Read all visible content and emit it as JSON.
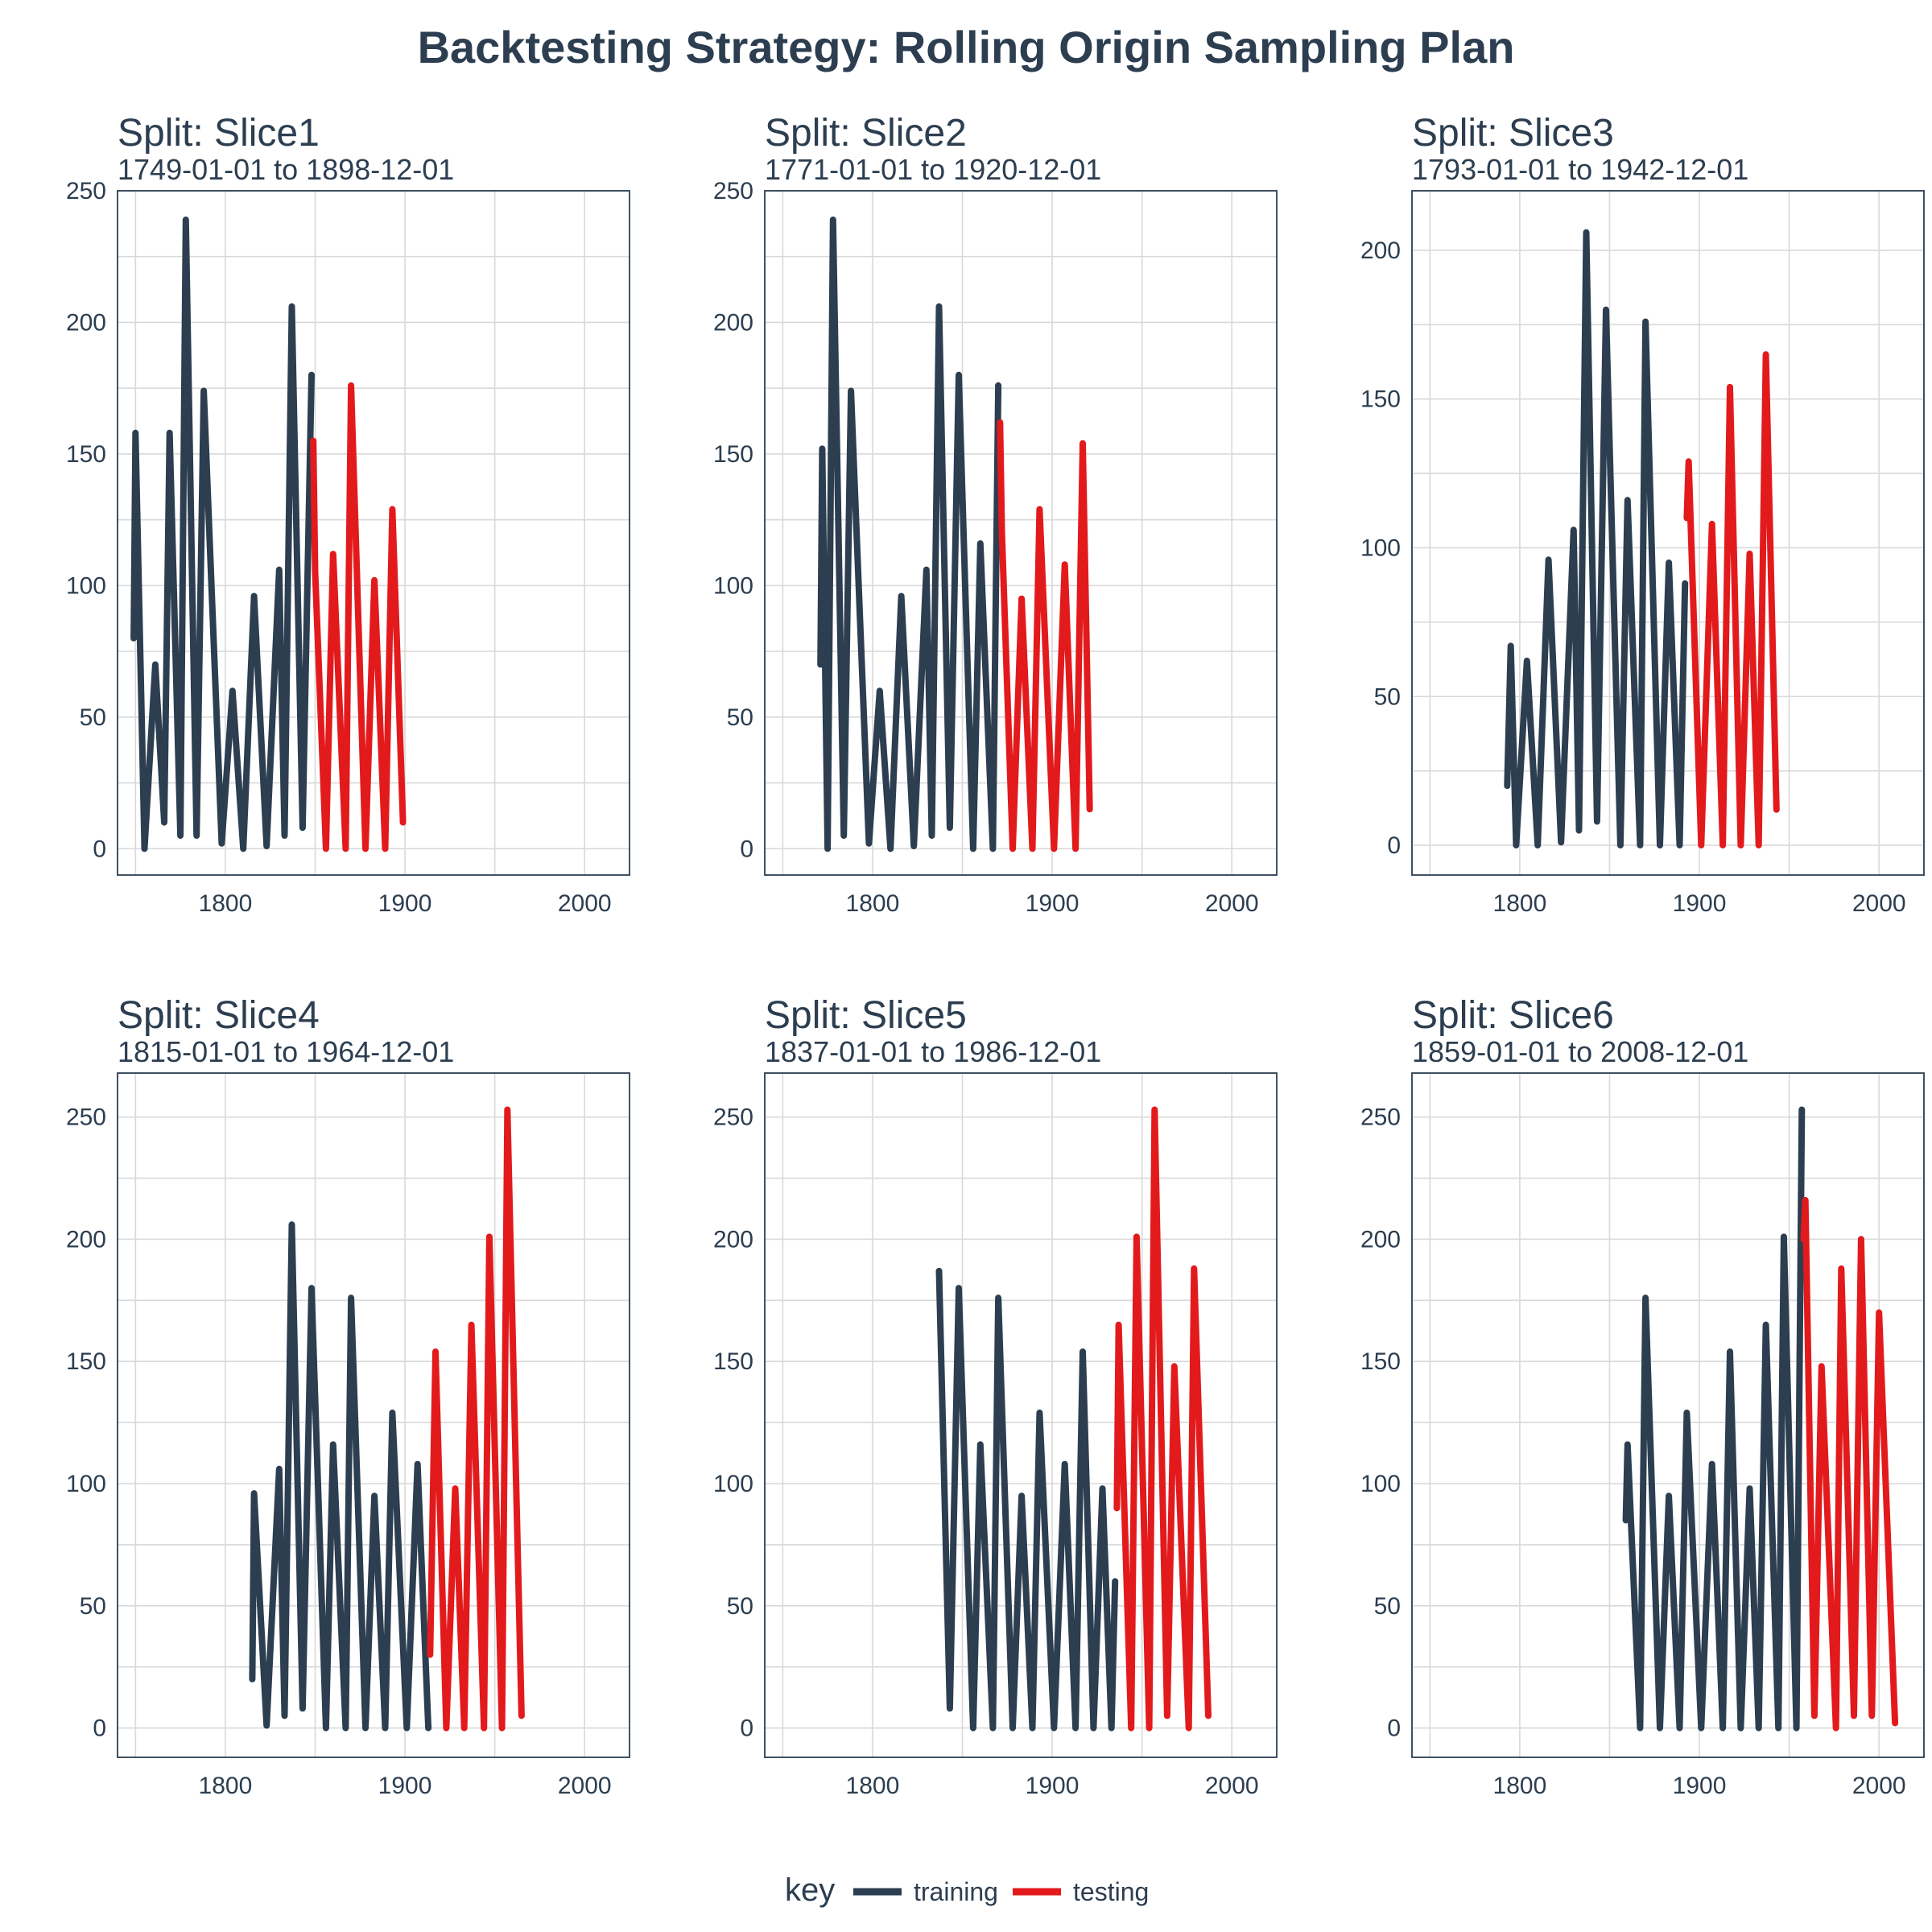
{
  "title": "Backtesting Strategy: Rolling Origin Sampling Plan",
  "legend": {
    "title": "key",
    "items": [
      {
        "label": "training",
        "color": "#2c3e50"
      },
      {
        "label": "testing",
        "color": "#e31a1c"
      }
    ]
  },
  "chart_data": [
    {
      "type": "line",
      "title": "Split: Slice1",
      "subtitle": "1749-01-01 to 1898-12-01",
      "xlim": [
        1740,
        2025
      ],
      "x_ticks": [
        1800,
        1900,
        2000
      ],
      "ylim": [
        -10,
        250
      ],
      "y_ticks": [
        0,
        50,
        100,
        150,
        200,
        250
      ],
      "series": [
        {
          "name": "training",
          "color": "#2c3e50",
          "x": [
            1749,
            1750,
            1755,
            1761,
            1766,
            1769,
            1775,
            1778,
            1784,
            1788,
            1798,
            1804,
            1810,
            1816,
            1823,
            1830,
            1833,
            1837,
            1843,
            1848
          ],
          "y": [
            80,
            158,
            0,
            70,
            10,
            158,
            5,
            239,
            5,
            174,
            2,
            60,
            0,
            96,
            1,
            106,
            5,
            206,
            8,
            180
          ]
        },
        {
          "name": "testing",
          "color": "#e31a1c",
          "x": [
            1849,
            1850,
            1856,
            1860,
            1867,
            1870,
            1878,
            1883,
            1889,
            1893,
            1898.9
          ],
          "y": [
            155,
            105,
            0,
            112,
            0,
            176,
            0,
            102,
            0,
            129,
            10
          ]
        }
      ]
    },
    {
      "type": "line",
      "title": "Split: Slice2",
      "subtitle": "1771-01-01 to 1920-12-01",
      "xlim": [
        1740,
        2025
      ],
      "x_ticks": [
        1800,
        1900,
        2000
      ],
      "ylim": [
        -10,
        250
      ],
      "y_ticks": [
        0,
        50,
        100,
        150,
        200,
        250
      ],
      "series": [
        {
          "name": "training",
          "color": "#2c3e50",
          "x": [
            1771,
            1772,
            1775,
            1778,
            1784,
            1788,
            1798,
            1804,
            1810,
            1816,
            1823,
            1830,
            1833,
            1837,
            1843,
            1848,
            1856,
            1860,
            1867,
            1870
          ],
          "y": [
            70,
            152,
            0,
            239,
            5,
            174,
            2,
            60,
            0,
            96,
            1,
            106,
            5,
            206,
            8,
            180,
            0,
            116,
            0,
            176
          ]
        },
        {
          "name": "testing",
          "color": "#e31a1c",
          "x": [
            1871,
            1872,
            1878,
            1883,
            1889,
            1893,
            1901,
            1907,
            1913,
            1917,
            1920.9
          ],
          "y": [
            162,
            120,
            0,
            95,
            0,
            129,
            0,
            108,
            0,
            154,
            15
          ]
        }
      ]
    },
    {
      "type": "line",
      "title": "Split: Slice3",
      "subtitle": "1793-01-01 to 1942-12-01",
      "xlim": [
        1740,
        2025
      ],
      "x_ticks": [
        1800,
        1900,
        2000
      ],
      "ylim": [
        -10,
        220
      ],
      "y_ticks": [
        0,
        50,
        100,
        150,
        200
      ],
      "series": [
        {
          "name": "training",
          "color": "#2c3e50",
          "x": [
            1793,
            1795,
            1798,
            1804,
            1810,
            1816,
            1823,
            1830,
            1833,
            1837,
            1843,
            1848,
            1856,
            1860,
            1867,
            1870,
            1878,
            1883,
            1889,
            1892
          ],
          "y": [
            20,
            67,
            0,
            62,
            0,
            96,
            1,
            106,
            5,
            206,
            8,
            180,
            0,
            116,
            0,
            176,
            0,
            95,
            0,
            88
          ]
        },
        {
          "name": "testing",
          "color": "#e31a1c",
          "x": [
            1893,
            1894,
            1901,
            1907,
            1913,
            1917,
            1923,
            1928,
            1933,
            1937,
            1942.9
          ],
          "y": [
            110,
            129,
            0,
            108,
            0,
            154,
            0,
            98,
            0,
            165,
            12
          ]
        }
      ]
    },
    {
      "type": "line",
      "title": "Split: Slice4",
      "subtitle": "1815-01-01 to 1964-12-01",
      "xlim": [
        1740,
        2025
      ],
      "x_ticks": [
        1800,
        1900,
        2000
      ],
      "ylim": [
        -12,
        268
      ],
      "y_ticks": [
        0,
        50,
        100,
        150,
        200,
        250
      ],
      "series": [
        {
          "name": "training",
          "color": "#2c3e50",
          "x": [
            1815,
            1816,
            1823,
            1830,
            1833,
            1837,
            1843,
            1848,
            1856,
            1860,
            1867,
            1870,
            1878,
            1883,
            1889,
            1893,
            1901,
            1907,
            1913
          ],
          "y": [
            20,
            96,
            1,
            106,
            5,
            206,
            8,
            180,
            0,
            116,
            0,
            176,
            0,
            95,
            0,
            129,
            0,
            108,
            0
          ]
        },
        {
          "name": "testing",
          "color": "#e31a1c",
          "x": [
            1914,
            1917,
            1923,
            1928,
            1933,
            1937,
            1944,
            1947,
            1954,
            1957,
            1964.9
          ],
          "y": [
            30,
            154,
            0,
            98,
            0,
            165,
            0,
            201,
            0,
            253,
            5
          ]
        }
      ]
    },
    {
      "type": "line",
      "title": "Split: Slice5",
      "subtitle": "1837-01-01 to 1986-12-01",
      "xlim": [
        1740,
        2025
      ],
      "x_ticks": [
        1800,
        1900,
        2000
      ],
      "ylim": [
        -12,
        268
      ],
      "y_ticks": [
        0,
        50,
        100,
        150,
        200,
        250
      ],
      "series": [
        {
          "name": "training",
          "color": "#2c3e50",
          "x": [
            1837,
            1843,
            1848,
            1856,
            1860,
            1867,
            1870,
            1878,
            1883,
            1889,
            1893,
            1901,
            1907,
            1913,
            1917,
            1923,
            1928,
            1933,
            1935
          ],
          "y": [
            187,
            8,
            180,
            0,
            116,
            0,
            176,
            0,
            95,
            0,
            129,
            0,
            108,
            0,
            154,
            0,
            98,
            0,
            60
          ]
        },
        {
          "name": "testing",
          "color": "#e31a1c",
          "x": [
            1936,
            1937,
            1944,
            1947,
            1954,
            1957,
            1964,
            1968,
            1976,
            1979,
            1986.9
          ],
          "y": [
            90,
            165,
            0,
            201,
            0,
            253,
            5,
            148,
            0,
            188,
            5
          ]
        }
      ]
    },
    {
      "type": "line",
      "title": "Split: Slice6",
      "subtitle": "1859-01-01 to 2008-12-01",
      "xlim": [
        1740,
        2025
      ],
      "x_ticks": [
        1800,
        1900,
        2000
      ],
      "ylim": [
        -12,
        268
      ],
      "y_ticks": [
        0,
        50,
        100,
        150,
        200,
        250
      ],
      "series": [
        {
          "name": "training",
          "color": "#2c3e50",
          "x": [
            1859,
            1860,
            1867,
            1870,
            1878,
            1883,
            1889,
            1893,
            1901,
            1907,
            1913,
            1917,
            1923,
            1928,
            1933,
            1937,
            1944,
            1947,
            1954,
            1957
          ],
          "y": [
            85,
            116,
            0,
            176,
            0,
            95,
            0,
            129,
            0,
            108,
            0,
            154,
            0,
            98,
            0,
            165,
            0,
            201,
            0,
            253
          ]
        },
        {
          "name": "testing",
          "color": "#e31a1c",
          "x": [
            1958,
            1959,
            1964,
            1968,
            1976,
            1979,
            1986,
            1990,
            1996,
            2000,
            2008.9
          ],
          "y": [
            200,
            216,
            5,
            148,
            0,
            188,
            5,
            200,
            5,
            170,
            2
          ]
        }
      ]
    }
  ]
}
